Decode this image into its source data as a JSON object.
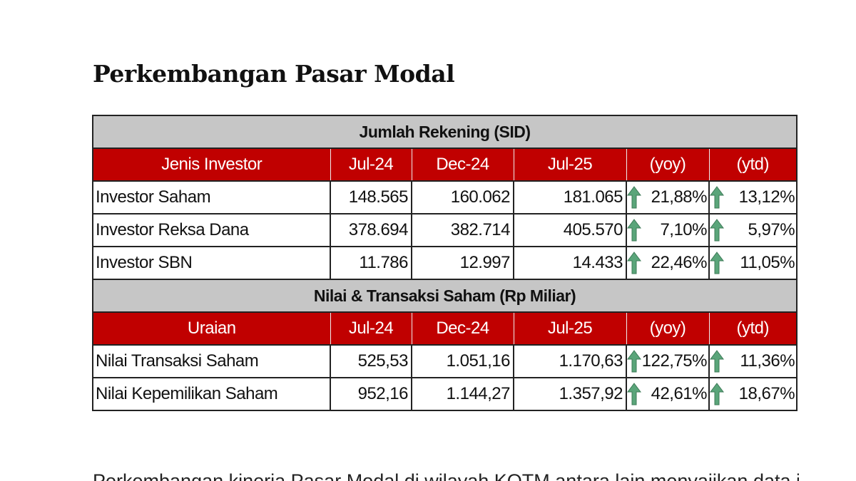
{
  "title": "Perkembangan Pasar Modal",
  "colors": {
    "header_red": "#c00000",
    "section_gray": "#c6c6c6",
    "arrow_green": "#5aa57a"
  },
  "table1": {
    "section": "Jumlah Rekening (SID)",
    "headers": [
      "Jenis Investor",
      "Jul-24",
      "Dec-24",
      "Jul-25",
      "(yoy)",
      "(ytd)"
    ],
    "rows": [
      {
        "label": "Investor Saham",
        "jul24": "148.565",
        "dec24": "160.062",
        "jul25": "181.065",
        "yoy": "21,88%",
        "ytd": "13,12%"
      },
      {
        "label": "Investor Reksa Dana",
        "jul24": "378.694",
        "dec24": "382.714",
        "jul25": "405.570",
        "yoy": "7,10%",
        "ytd": "5,97%"
      },
      {
        "label": "Investor SBN",
        "jul24": "11.786",
        "dec24": "12.997",
        "jul25": "14.433",
        "yoy": "22,46%",
        "ytd": "11,05%"
      }
    ]
  },
  "table2": {
    "section": "Nilai & Transaksi Saham (Rp Miliar)",
    "headers": [
      "Uraian",
      "Jul-24",
      "Dec-24",
      "Jul-25",
      "(yoy)",
      "(ytd)"
    ],
    "rows": [
      {
        "label": "Nilai Transaksi Saham",
        "jul24": "525,53",
        "dec24": "1.051,16",
        "jul25": "1.170,63",
        "yoy": "122,75%",
        "ytd": "11,36%"
      },
      {
        "label": "Nilai Kepemilikan Saham",
        "jul24": "952,16",
        "dec24": "1.144,27",
        "jul25": "1.357,92",
        "yoy": "42,61%",
        "ytd": "18,67%"
      }
    ]
  },
  "paragraph": "Perkembangan kinerja Pasar Modal di wilayah KOTM antara lain menyajikan data jumlah"
}
